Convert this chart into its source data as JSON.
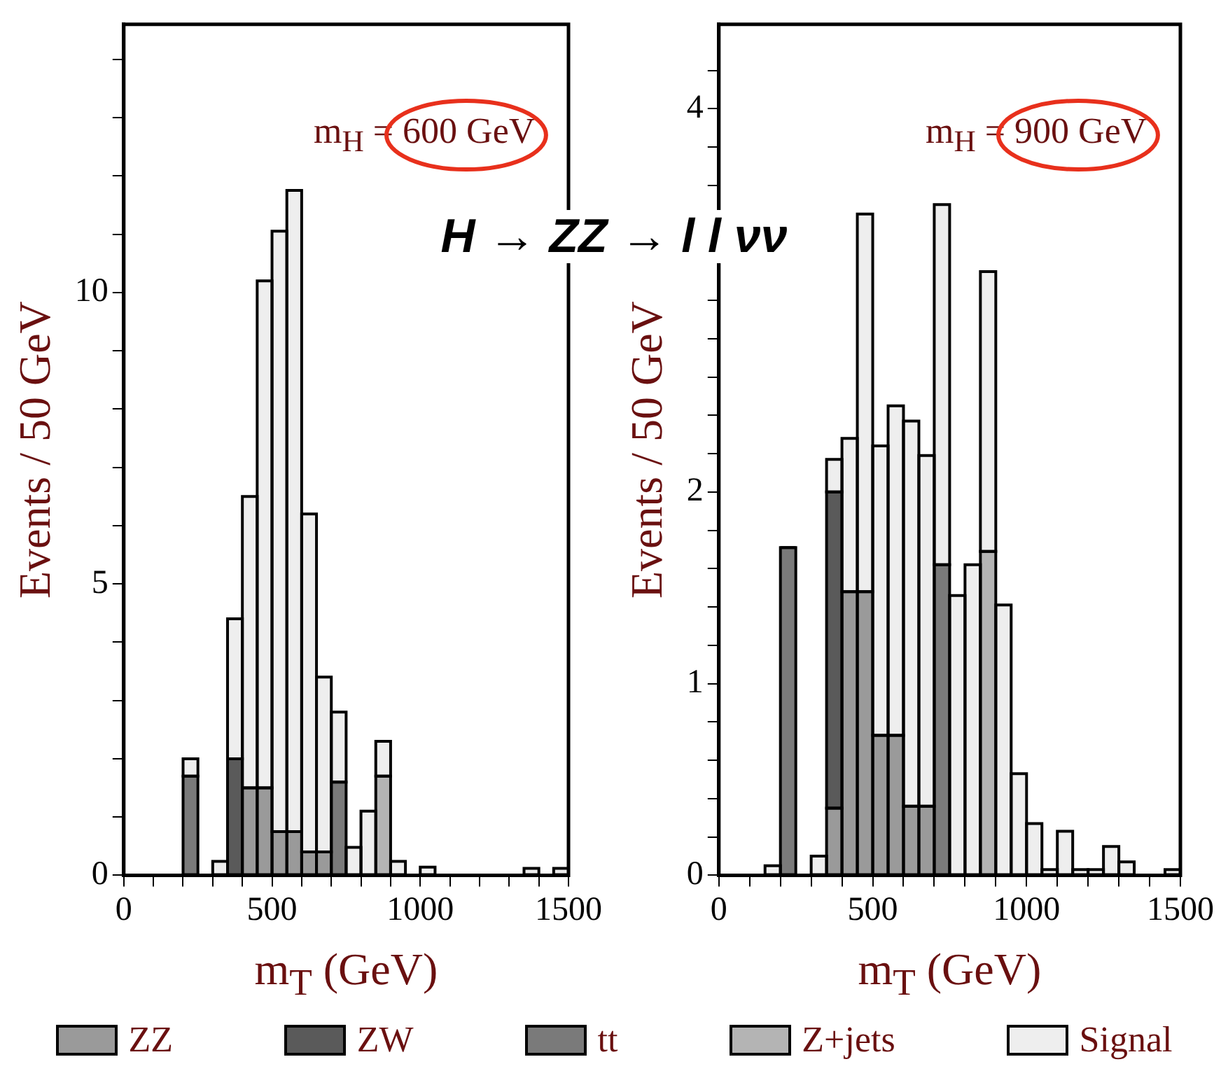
{
  "chart_data": [
    {
      "type": "bar",
      "title": "H → ZZ → l l νν",
      "xlabel": "m$_{T}$ (GeV)",
      "ylabel": "Events / 50 GeV",
      "annotations": [
        "m$_{H}$ = 600 GeV"
      ],
      "stacked": true,
      "legend": "bottom",
      "x": [
        25,
        75,
        125,
        175,
        225,
        275,
        325,
        375,
        425,
        475,
        525,
        575,
        625,
        675,
        725,
        775,
        825,
        875,
        925,
        975,
        1025,
        1075,
        1125,
        1175,
        1225,
        1275,
        1325,
        1375,
        1425,
        1475
      ],
      "xlim": [
        0,
        1500
      ],
      "xticks": [
        0,
        {
          "value": 100,
          "label": null
        },
        {
          "value": 200,
          "label": null
        },
        {
          "value": 300,
          "label": null
        },
        {
          "value": 400,
          "label": null
        },
        500,
        {
          "value": 600,
          "label": null
        },
        {
          "value": 700,
          "label": null
        },
        {
          "value": 800,
          "label": null
        },
        {
          "value": 900,
          "label": null
        },
        1000,
        {
          "value": 1100,
          "label": null
        },
        {
          "value": 1200,
          "label": null
        },
        {
          "value": 1300,
          "label": null
        },
        {
          "value": 1400,
          "label": null
        },
        1500
      ],
      "ylim": [
        0,
        14.6
      ],
      "yticks": [
        0,
        {
          "value": 1,
          "label": null
        },
        {
          "value": 2,
          "label": null
        },
        {
          "value": 3,
          "label": null
        },
        {
          "value": 4,
          "label": null
        },
        5,
        {
          "value": 6,
          "label": null
        },
        {
          "value": 7,
          "label": null
        },
        {
          "value": 8,
          "label": null
        },
        {
          "value": 9,
          "label": null
        },
        10,
        {
          "value": 11,
          "label": null
        },
        {
          "value": 12,
          "label": null
        },
        {
          "value": 13,
          "label": null
        },
        {
          "value": 14,
          "label": null
        }
      ],
      "series": [
        {
          "name": "ZZ",
          "color": "#9a9a9a",
          "values": [
            null,
            null,
            null,
            null,
            null,
            null,
            null,
            null,
            1.5,
            1.5,
            0.75,
            0.75,
            0.4,
            0.4,
            null,
            null,
            null,
            null,
            null,
            null,
            null,
            null,
            null,
            null,
            null,
            null,
            null,
            null,
            null,
            null
          ]
        },
        {
          "name": "ZW",
          "color": "#5a5a5a",
          "values": [
            null,
            null,
            null,
            null,
            null,
            null,
            null,
            2.0,
            null,
            null,
            null,
            null,
            null,
            null,
            null,
            null,
            null,
            null,
            null,
            null,
            null,
            null,
            null,
            null,
            null,
            null,
            null,
            null,
            null,
            null
          ]
        },
        {
          "name": "tt",
          "color": "#7a7a7a",
          "values": [
            null,
            null,
            null,
            null,
            1.7,
            null,
            null,
            null,
            null,
            null,
            null,
            null,
            null,
            null,
            1.6,
            null,
            null,
            null,
            null,
            null,
            null,
            null,
            null,
            null,
            null,
            null,
            null,
            null,
            null,
            null
          ]
        },
        {
          "name": "Z+jets",
          "color": "#b4b4b4",
          "values": [
            null,
            null,
            null,
            null,
            null,
            null,
            null,
            null,
            null,
            null,
            null,
            null,
            null,
            null,
            null,
            null,
            null,
            1.7,
            null,
            null,
            null,
            null,
            null,
            null,
            null,
            null,
            null,
            null,
            null,
            null
          ]
        },
        {
          "name": "Signal",
          "color": "#eeeeee",
          "values": [
            0,
            0,
            0,
            0,
            0.3,
            0,
            0.24,
            2.4,
            5.0,
            8.7,
            10.3,
            11.0,
            5.8,
            3.0,
            1.2,
            0.48,
            1.1,
            0.6,
            0.24,
            0,
            0.14,
            0,
            0,
            0,
            0,
            0,
            0,
            0.12,
            0,
            0.12
          ]
        }
      ]
    },
    {
      "type": "bar",
      "xlabel": "m$_{T}$ (GeV)",
      "ylabel": "Events / 50 GeV",
      "annotations": [
        "m$_{H}$ = 900 GeV"
      ],
      "stacked": true,
      "x": [
        25,
        75,
        125,
        175,
        225,
        275,
        325,
        375,
        425,
        475,
        525,
        575,
        625,
        675,
        725,
        775,
        825,
        875,
        925,
        975,
        1025,
        1075,
        1125,
        1175,
        1225,
        1275,
        1325,
        1375,
        1425,
        1475
      ],
      "xlim": [
        0,
        1500
      ],
      "xticks": [
        0,
        {
          "value": 100,
          "label": null
        },
        {
          "value": 200,
          "label": null
        },
        {
          "value": 300,
          "label": null
        },
        {
          "value": 400,
          "label": null
        },
        500,
        {
          "value": 600,
          "label": null
        },
        {
          "value": 700,
          "label": null
        },
        {
          "value": 800,
          "label": null
        },
        {
          "value": 900,
          "label": null
        },
        1000,
        {
          "value": 1100,
          "label": null
        },
        {
          "value": 1200,
          "label": null
        },
        {
          "value": 1300,
          "label": null
        },
        {
          "value": 1400,
          "label": null
        },
        1500
      ],
      "ylim": [
        0,
        4.44
      ],
      "yticks": [
        0,
        {
          "value": 0.2,
          "label": null
        },
        {
          "value": 0.4,
          "label": null
        },
        {
          "value": 0.6,
          "label": null
        },
        {
          "value": 0.8,
          "label": null
        },
        1,
        {
          "value": 1.2,
          "label": null
        },
        {
          "value": 1.4,
          "label": null
        },
        {
          "value": 1.6,
          "label": null
        },
        {
          "value": 1.8,
          "label": null
        },
        2,
        {
          "value": 2.2,
          "label": null
        },
        {
          "value": 2.4,
          "label": null
        },
        {
          "value": 2.6,
          "label": null
        },
        {
          "value": 2.8,
          "label": null
        },
        {
          "value": 3,
          "label": null
        },
        {
          "value": 3.2,
          "label": null
        },
        {
          "value": 3.4,
          "label": null
        },
        {
          "value": 3.6,
          "label": null
        },
        {
          "value": 3.8,
          "label": null
        },
        4,
        {
          "value": 4.2,
          "label": null
        }
      ],
      "series": [
        {
          "color": "#9a9a9a",
          "values": [
            null,
            null,
            null,
            null,
            null,
            null,
            null,
            0.35,
            1.48,
            1.48,
            0.73,
            0.73,
            0.36,
            0.36,
            null,
            null,
            null,
            null,
            null,
            null,
            null,
            null,
            null,
            null,
            null,
            null,
            null,
            null,
            null,
            null
          ]
        },
        {
          "color": "#5a5a5a",
          "values": [
            null,
            null,
            null,
            null,
            null,
            null,
            null,
            1.65,
            null,
            null,
            null,
            null,
            null,
            null,
            null,
            null,
            null,
            null,
            null,
            null,
            null,
            null,
            null,
            null,
            null,
            null,
            null,
            null,
            null,
            null
          ]
        },
        {
          "color": "#7a7a7a",
          "values": [
            null,
            null,
            null,
            null,
            1.71,
            null,
            null,
            null,
            null,
            null,
            null,
            null,
            null,
            null,
            1.62,
            null,
            null,
            null,
            null,
            null,
            null,
            null,
            null,
            null,
            null,
            null,
            null,
            null,
            null,
            null
          ]
        },
        {
          "color": "#b4b4b4",
          "values": [
            null,
            null,
            null,
            null,
            null,
            null,
            null,
            null,
            null,
            null,
            null,
            null,
            null,
            null,
            null,
            null,
            null,
            1.69,
            null,
            null,
            null,
            null,
            null,
            null,
            null,
            null,
            null,
            null,
            null,
            null
          ]
        },
        {
          "color": "#eeeeee",
          "values": [
            0,
            0,
            0,
            0.05,
            0,
            0,
            0.1,
            0.17,
            0.8,
            1.97,
            1.51,
            1.72,
            2.01,
            1.83,
            1.88,
            1.46,
            1.62,
            1.46,
            1.41,
            0.53,
            0.27,
            0.03,
            0.23,
            0.03,
            0.03,
            0.15,
            0.07,
            0,
            0,
            0.03
          ]
        }
      ]
    }
  ]
}
